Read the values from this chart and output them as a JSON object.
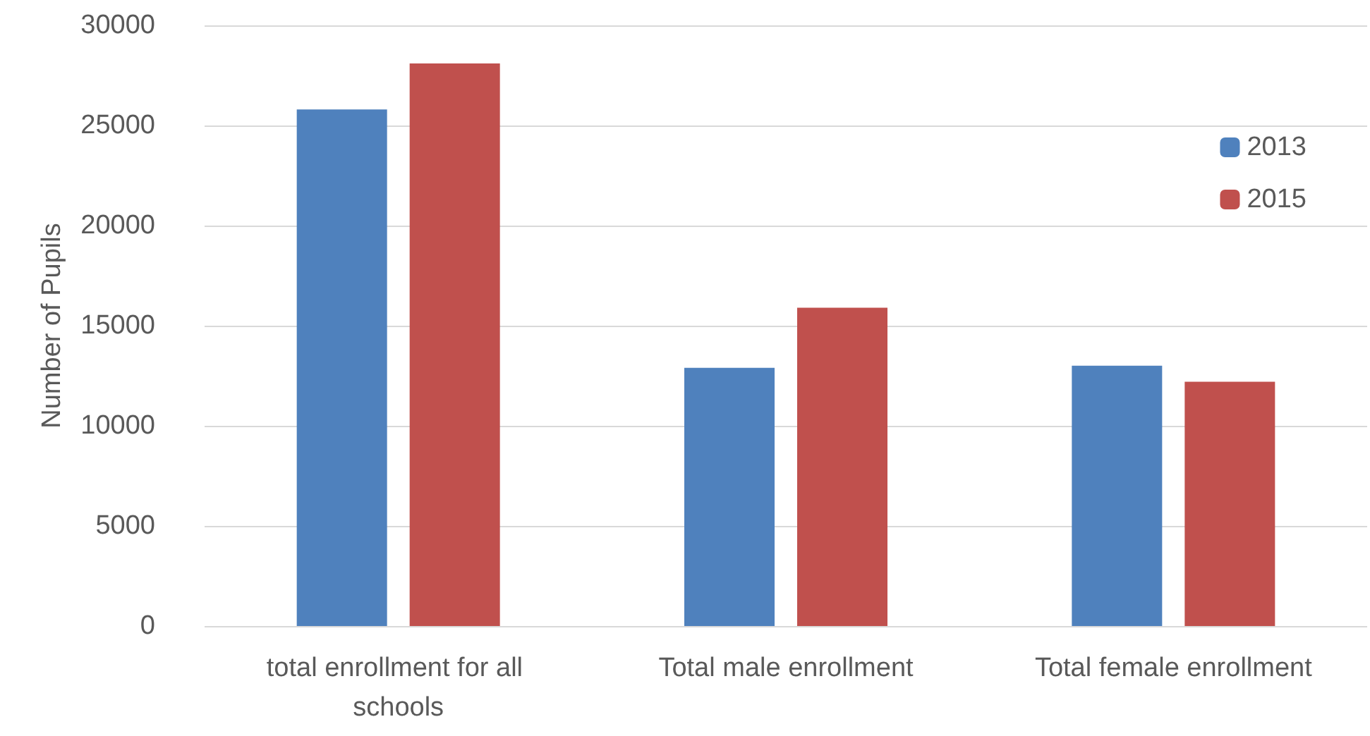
{
  "chart_data": {
    "type": "bar",
    "ylabel": "Number of Pupils",
    "categories": [
      "total enrollment for all schools",
      "Total male enrollment",
      "Total female enrollment"
    ],
    "series": [
      {
        "name": "2013",
        "color": "#4f81bd",
        "values": [
          25800,
          12900,
          13000
        ]
      },
      {
        "name": "2015",
        "color": "#c0504d",
        "values": [
          28100,
          15900,
          12200
        ]
      }
    ],
    "ylim": [
      0,
      30000
    ],
    "yticks": [
      0,
      5000,
      10000,
      15000,
      20000,
      25000,
      30000
    ],
    "grid": "y",
    "legend": "top right"
  }
}
